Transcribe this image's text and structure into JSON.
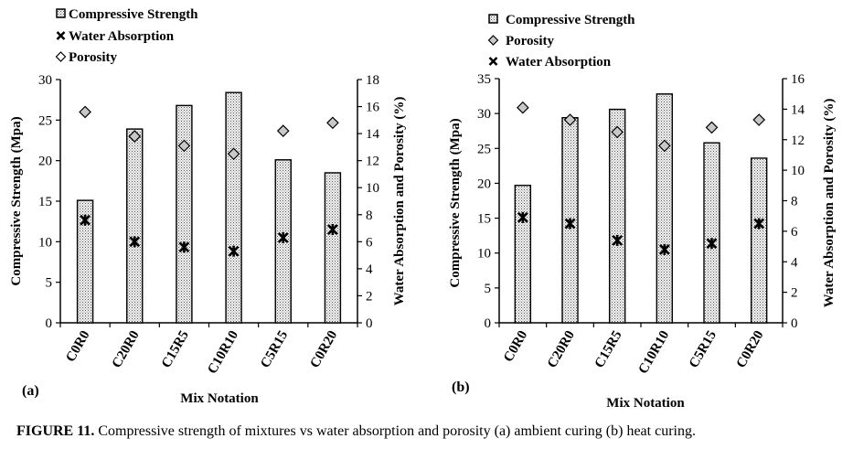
{
  "chart_data": [
    {
      "type": "bar",
      "panel_label": "(a)",
      "categories": [
        "C0R0",
        "C20R0",
        "C15R5",
        "C10R10",
        "C5R15",
        "C0R20"
      ],
      "xlabel": "Mix Notation",
      "ylabel": "Compressive Strength (Mpa)",
      "y2label": "Water Absorption and Porosity (%)",
      "ylim": [
        0,
        30
      ],
      "yticks": [
        0,
        5,
        10,
        15,
        20,
        25,
        30
      ],
      "y2lim": [
        0,
        18
      ],
      "y2ticks": [
        0,
        2,
        4,
        6,
        8,
        10,
        12,
        14,
        16,
        18
      ],
      "legend": [
        "Compressive Strength",
        "Water Absorption",
        "Porosity"
      ],
      "series": [
        {
          "name": "Compressive Strength",
          "axis": "left",
          "kind": "bar",
          "values": [
            15.1,
            23.9,
            26.8,
            28.4,
            20.1,
            18.5
          ]
        },
        {
          "name": "Water Absorption",
          "axis": "right",
          "kind": "marker-x",
          "values": [
            7.6,
            6.0,
            5.6,
            5.3,
            6.3,
            6.9
          ]
        },
        {
          "name": "Porosity",
          "axis": "right",
          "kind": "marker-diamond",
          "values": [
            15.6,
            13.8,
            13.1,
            12.5,
            14.2,
            14.8
          ]
        }
      ]
    },
    {
      "type": "bar",
      "panel_label": "(b)",
      "categories": [
        "C0R0",
        "C20R0",
        "C15R5",
        "C10R10",
        "C5R15",
        "C0R20"
      ],
      "xlabel": "Mix Notation",
      "ylabel": "Compressive Strength (Mpa)",
      "y2label": "Water Absorption and Porosity (%)",
      "ylim": [
        0,
        35
      ],
      "yticks": [
        0,
        5,
        10,
        15,
        20,
        25,
        30,
        35
      ],
      "y2lim": [
        0,
        16
      ],
      "y2ticks": [
        0,
        2,
        4,
        6,
        8,
        10,
        12,
        14,
        16
      ],
      "legend": [
        "Compressive Strength",
        "Porosity",
        "Water Absorption"
      ],
      "series": [
        {
          "name": "Compressive Strength",
          "axis": "left",
          "kind": "bar",
          "values": [
            19.7,
            29.4,
            30.6,
            32.8,
            25.8,
            23.6
          ]
        },
        {
          "name": "Porosity",
          "axis": "right",
          "kind": "marker-diamond",
          "values": [
            14.1,
            13.3,
            12.5,
            11.6,
            12.8,
            13.3
          ]
        },
        {
          "name": "Water Absorption",
          "axis": "right",
          "kind": "marker-x",
          "values": [
            6.9,
            6.5,
            5.4,
            4.8,
            5.2,
            6.5
          ]
        }
      ]
    }
  ],
  "caption": {
    "label": "FIGURE 11.",
    "text": " Compressive strength of mixtures vs water absorption and porosity (a) ambient curing (b) heat curing."
  },
  "colors": {
    "bar_fill_base": "#f4f4f4",
    "bar_dots": "#555555",
    "diamond_fill": "#c8c8c8",
    "axis": "#000000"
  }
}
